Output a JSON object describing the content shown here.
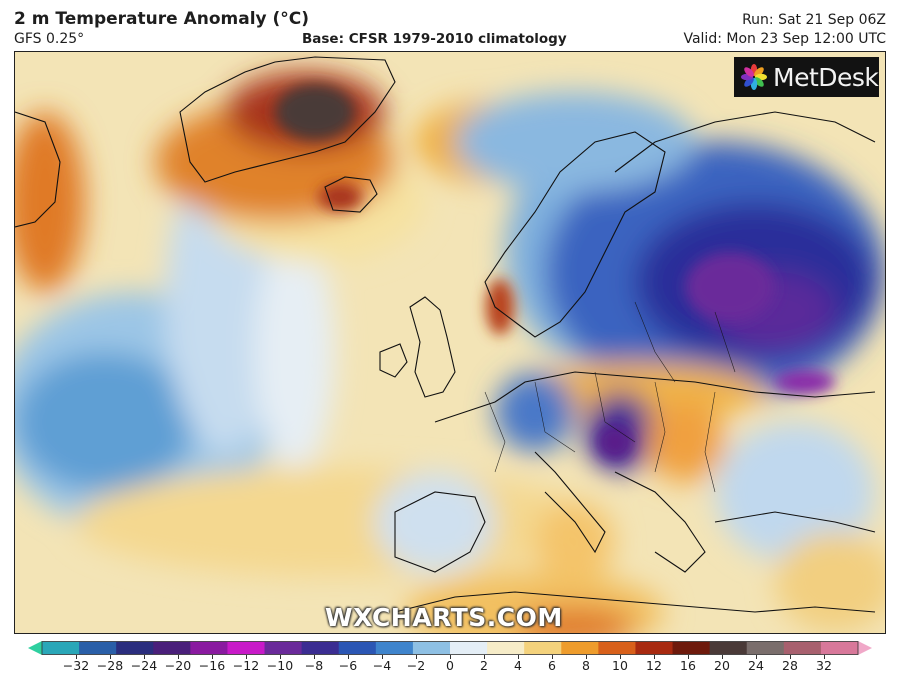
{
  "header": {
    "title": "2 m Temperature Anomaly (°C)",
    "model": "GFS 0.25°",
    "base": "Base: CFSR 1979-2010 climatology",
    "run": "Run: Sat 21 Sep 06Z",
    "valid": "Valid: Mon 23 Sep 12:00 UTC"
  },
  "logo": {
    "text": "MetDesk",
    "icon": "metdesk-flower-icon"
  },
  "watermark": "WXCHARTS.COM",
  "colorbar": {
    "ticks": [
      "−32",
      "−28",
      "−24",
      "−20",
      "−16",
      "−12",
      "−10",
      "−8",
      "−6",
      "−4",
      "−2",
      "0",
      "2",
      "4",
      "6",
      "8",
      "10",
      "12",
      "16",
      "20",
      "24",
      "28",
      "32"
    ],
    "colors": [
      "#2fd0a0",
      "#2aa7b8",
      "#2a5fa8",
      "#2b2e7e",
      "#4a1f7a",
      "#8a1aa0",
      "#c81ac8",
      "#6a2a9a",
      "#3b2d92",
      "#2b56b4",
      "#3f84cc",
      "#8ec0e4",
      "#e4eef6",
      "#f6ecc8",
      "#f4d27c",
      "#ee9c2c",
      "#d8601a",
      "#a82a10",
      "#6e1a0c",
      "#4a3a38",
      "#7a6e6c",
      "#a8606e",
      "#d8789a",
      "#f0a8c8"
    ]
  }
}
